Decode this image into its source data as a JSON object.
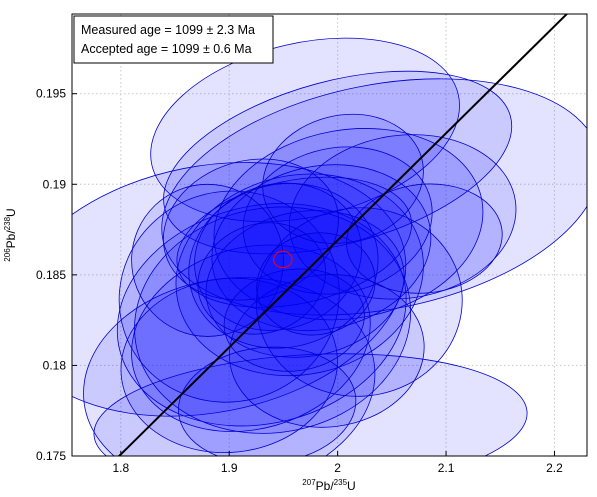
{
  "chart_data": {
    "type": "scatter",
    "subtype": "concordia-error-ellipses",
    "title": "",
    "xlabel": {
      "main_sup": "207",
      "main": "Pb/",
      "sub_sup": "235",
      "tail": "U"
    },
    "ylabel": {
      "main_sup": "206",
      "main": "Pb/",
      "sub_sup": "238",
      "tail": "U"
    },
    "xlim": [
      1.755,
      2.23
    ],
    "ylim": [
      0.175,
      0.1994
    ],
    "xticks": [
      1.8,
      1.9,
      2.0,
      2.1,
      2.2
    ],
    "xtick_labels": [
      "1.8",
      "1.9",
      "2",
      "2.1",
      "2.2"
    ],
    "yticks": [
      0.175,
      0.18,
      0.185,
      0.19,
      0.195
    ],
    "ytick_labels": [
      "0.175",
      "0.18",
      "0.185",
      "0.19",
      "0.195"
    ],
    "grid": true,
    "legend_position": "top-left",
    "annotations": [
      "Measured age = 1099 ± 2.3 Ma",
      "Accepted age = 1099 ± 0.6 Ma"
    ],
    "colors": {
      "ellipse_fill": "#0000ff",
      "ellipse_stroke": "#0000cc",
      "concordia": "#000000",
      "mean_ellipse": "#ff0000"
    },
    "concordia_line": {
      "x": [
        1.79,
        2.23
      ],
      "y": [
        0.1745,
        0.2005
      ]
    },
    "mean_ellipse": {
      "cx": 1.9495,
      "cy": 0.18585,
      "rx": 0.0085,
      "ry": 0.00045,
      "angle": 0
    },
    "ellipses": [
      {
        "cx": 1.97,
        "cy": 0.193,
        "rx": 0.145,
        "ry": 0.0048,
        "angle": -13
      },
      {
        "cx": 2.04,
        "cy": 0.1893,
        "rx": 0.205,
        "ry": 0.0062,
        "angle": -11
      },
      {
        "cx": 2.0,
        "cy": 0.1912,
        "rx": 0.165,
        "ry": 0.0045,
        "angle": -15
      },
      {
        "cx": 1.88,
        "cy": 0.1842,
        "rx": 0.185,
        "ry": 0.0068,
        "angle": -11
      },
      {
        "cx": 1.975,
        "cy": 0.1768,
        "rx": 0.2,
        "ry": 0.0038,
        "angle": -3
      },
      {
        "cx": 1.9,
        "cy": 0.179,
        "rx": 0.135,
        "ry": 0.0058,
        "angle": -8
      },
      {
        "cx": 1.93,
        "cy": 0.1828,
        "rx": 0.135,
        "ry": 0.006,
        "angle": -14
      },
      {
        "cx": 1.94,
        "cy": 0.1825,
        "rx": 0.128,
        "ry": 0.0062,
        "angle": -10
      },
      {
        "cx": 1.965,
        "cy": 0.185,
        "rx": 0.115,
        "ry": 0.0055,
        "angle": -12
      },
      {
        "cx": 2.01,
        "cy": 0.1878,
        "rx": 0.125,
        "ry": 0.0052,
        "angle": -10
      },
      {
        "cx": 1.92,
        "cy": 0.1815,
        "rx": 0.112,
        "ry": 0.005,
        "angle": -16
      },
      {
        "cx": 1.985,
        "cy": 0.1865,
        "rx": 0.102,
        "ry": 0.0045,
        "angle": -12
      },
      {
        "cx": 1.95,
        "cy": 0.1855,
        "rx": 0.088,
        "ry": 0.0045,
        "angle": -14
      },
      {
        "cx": 1.945,
        "cy": 0.186,
        "rx": 0.078,
        "ry": 0.004,
        "angle": -18
      },
      {
        "cx": 1.97,
        "cy": 0.1845,
        "rx": 0.092,
        "ry": 0.004,
        "angle": -10
      },
      {
        "cx": 1.9,
        "cy": 0.1838,
        "rx": 0.102,
        "ry": 0.0058,
        "angle": -18
      },
      {
        "cx": 2.0,
        "cy": 0.188,
        "rx": 0.088,
        "ry": 0.004,
        "angle": -12
      },
      {
        "cx": 2.06,
        "cy": 0.1882,
        "rx": 0.105,
        "ry": 0.0045,
        "angle": -8
      },
      {
        "cx": 1.9,
        "cy": 0.18,
        "rx": 0.1,
        "ry": 0.0048,
        "angle": -6
      },
      {
        "cx": 2.02,
        "cy": 0.1835,
        "rx": 0.095,
        "ry": 0.0052,
        "angle": -6
      },
      {
        "cx": 1.96,
        "cy": 0.1868,
        "rx": 0.11,
        "ry": 0.0034,
        "angle": -12
      },
      {
        "cx": 1.99,
        "cy": 0.1808,
        "rx": 0.09,
        "ry": 0.0042,
        "angle": -6
      },
      {
        "cx": 1.92,
        "cy": 0.1875,
        "rx": 0.082,
        "ry": 0.0038,
        "angle": -16
      },
      {
        "cx": 2.005,
        "cy": 0.1903,
        "rx": 0.075,
        "ry": 0.0035,
        "angle": -14
      },
      {
        "cx": 1.935,
        "cy": 0.1778,
        "rx": 0.082,
        "ry": 0.0032,
        "angle": -5
      },
      {
        "cx": 1.88,
        "cy": 0.1858,
        "rx": 0.07,
        "ry": 0.0042,
        "angle": -22
      },
      {
        "cx": 2.08,
        "cy": 0.187,
        "rx": 0.072,
        "ry": 0.003,
        "angle": -6
      },
      {
        "cx": 1.96,
        "cy": 0.1825,
        "rx": 0.065,
        "ry": 0.0028,
        "angle": -8
      },
      {
        "cx": 1.93,
        "cy": 0.1848,
        "rx": 0.06,
        "ry": 0.003,
        "angle": -20
      },
      {
        "cx": 1.98,
        "cy": 0.1845,
        "rx": 0.055,
        "ry": 0.0028,
        "angle": -12
      }
    ]
  }
}
